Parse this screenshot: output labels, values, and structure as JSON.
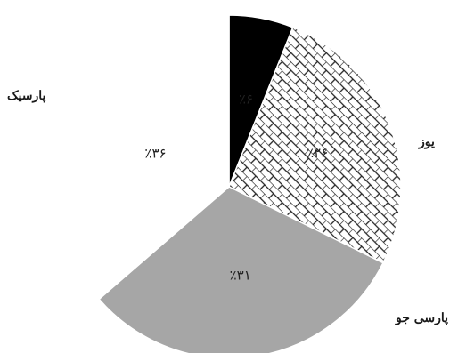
{
  "chart_data": {
    "type": "pie",
    "slices": [
      {
        "label": "",
        "value": 6,
        "value_label": "٪۶",
        "color": "#000000",
        "pattern": "solid"
      },
      {
        "label": "یوز",
        "value": 26,
        "value_label": "٪۲۶",
        "color": "#ffffff",
        "pattern": "brick"
      },
      {
        "label": "پارسی جو",
        "value": 31,
        "value_label": "٪۳۱",
        "color": "#a6a6a6",
        "pattern": "solid"
      },
      {
        "label": "پارسیک",
        "value": 36,
        "value_label": "٪۳۶",
        "color": "#ffffff",
        "pattern": "solid"
      }
    ],
    "start_angle_deg": 0,
    "direction": "clockwise"
  }
}
